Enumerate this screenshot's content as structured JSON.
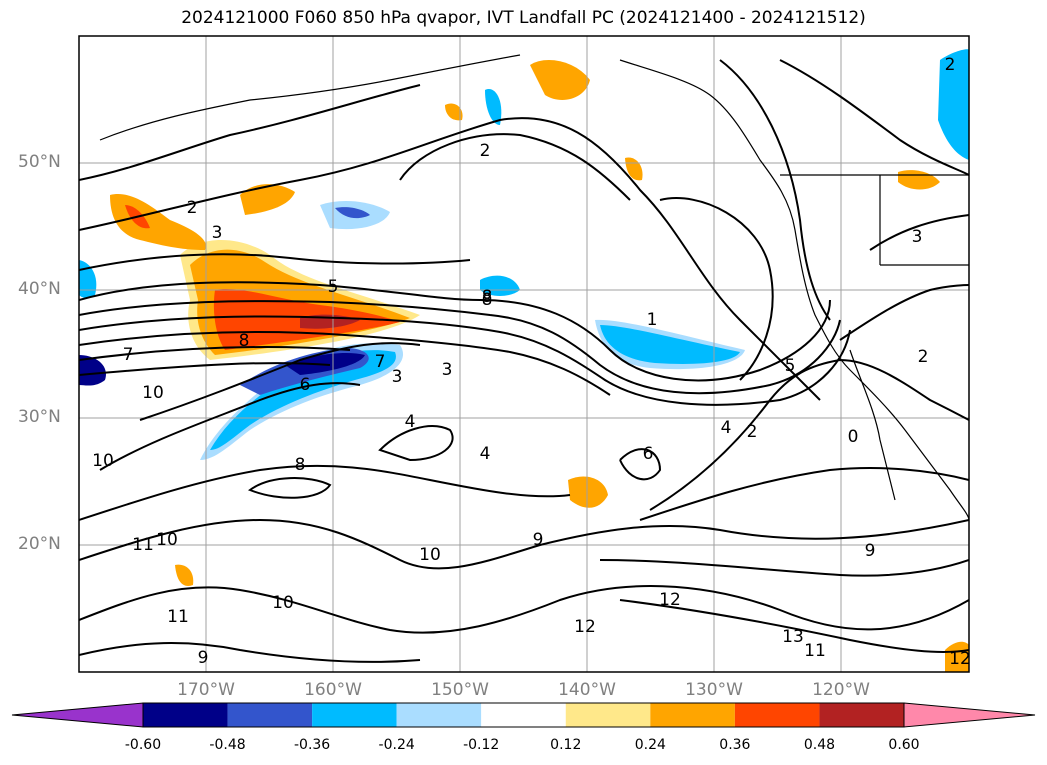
{
  "title": "2024121000 F060 850 hPa qvapor, IVT Landfall PC (2024121400 - 2024121512)",
  "lat_labels": [
    {
      "text": "50°N",
      "lat": 50
    },
    {
      "text": "40°N",
      "lat": 40
    },
    {
      "text": "30°N",
      "lat": 30
    },
    {
      "text": "20°N",
      "lat": 20
    }
  ],
  "lon_labels": [
    {
      "text": "170°W",
      "lon": -170
    },
    {
      "text": "160°W",
      "lon": -160
    },
    {
      "text": "150°W",
      "lon": -150
    },
    {
      "text": "140°W",
      "lon": -140
    },
    {
      "text": "130°W",
      "lon": -130
    },
    {
      "text": "120°W",
      "lon": -120
    }
  ],
  "colorbar": {
    "colors": [
      "#9933cc",
      "#000088",
      "#3355cc",
      "#00bbff",
      "#aaddff",
      "#ffffff",
      "#ffe88a",
      "#ffa500",
      "#ff4500",
      "#b22222",
      "#ff88aa"
    ],
    "labels": [
      "-0.60",
      "-0.48",
      "-0.36",
      "-0.24",
      "-0.12",
      "0.12",
      "0.24",
      "0.36",
      "0.48",
      "0.60"
    ]
  },
  "contour_labels": [
    "2",
    "3",
    "5",
    "8",
    "7",
    "10",
    "4",
    "6",
    "3",
    "3",
    "2",
    "8",
    "1",
    "5",
    "4",
    "2",
    "0",
    "6",
    "4",
    "8",
    "10",
    "11",
    "10",
    "9",
    "9",
    "10",
    "12",
    "11",
    "12",
    "13",
    "11",
    "9",
    "10",
    "12",
    "2",
    "8",
    "3",
    "2",
    "7"
  ]
}
